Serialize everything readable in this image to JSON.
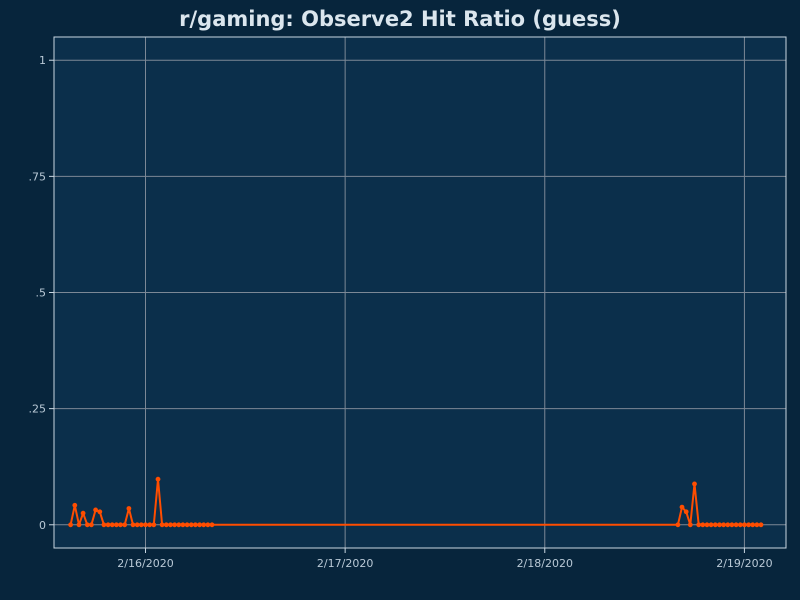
{
  "colors": {
    "background": "#07253c",
    "plot_background": "#0b2f4b",
    "plot_border": "#c9d7e2",
    "grid": "#7c8896",
    "series": "#ff4d00",
    "title": "#dbe6ee",
    "tick_label": "#b9c9d6"
  },
  "chart_data": {
    "type": "line",
    "title": "r/gaming: Observe2 Hit Ratio (guess)",
    "xlabel": "",
    "ylabel": "",
    "grid": true,
    "legend": "none",
    "x_axis": {
      "type": "datetime",
      "range": [
        "2020-02-15T13:00",
        "2020-02-19T05:00"
      ],
      "ticks": [
        "2020-02-16T00:00",
        "2020-02-17T00:00",
        "2020-02-18T00:00",
        "2020-02-19T00:00"
      ],
      "tick_labels": [
        "2/16/2020",
        "2/17/2020",
        "2/18/2020",
        "2/19/2020"
      ]
    },
    "y_axis": {
      "range": [
        -0.05,
        1.05
      ],
      "ticks": [
        0,
        0.25,
        0.5,
        0.75,
        1
      ],
      "tick_labels": [
        "0",
        ".25",
        ".5",
        ".75",
        "1"
      ]
    },
    "series": [
      {
        "x": [
          "2020-02-15T15:00",
          "2020-02-15T15:30",
          "2020-02-15T16:00",
          "2020-02-15T16:30",
          "2020-02-15T17:00",
          "2020-02-15T17:30",
          "2020-02-15T18:00",
          "2020-02-15T18:30",
          "2020-02-15T19:00",
          "2020-02-15T19:30",
          "2020-02-15T20:00",
          "2020-02-15T20:30",
          "2020-02-15T21:00",
          "2020-02-15T21:30",
          "2020-02-15T22:00",
          "2020-02-15T22:30",
          "2020-02-15T23:00",
          "2020-02-15T23:30",
          "2020-02-16T00:00",
          "2020-02-16T00:30",
          "2020-02-16T01:00",
          "2020-02-16T01:30",
          "2020-02-16T02:00",
          "2020-02-16T02:30",
          "2020-02-16T03:00",
          "2020-02-16T03:30",
          "2020-02-16T04:00",
          "2020-02-16T04:30",
          "2020-02-16T05:00",
          "2020-02-16T05:30",
          "2020-02-16T06:00",
          "2020-02-16T06:30",
          "2020-02-16T07:00",
          "2020-02-16T07:30",
          "2020-02-16T08:00",
          "2020-02-18T16:00",
          "2020-02-18T16:30",
          "2020-02-18T17:00",
          "2020-02-18T17:30",
          "2020-02-18T18:00",
          "2020-02-18T18:30",
          "2020-02-18T19:00",
          "2020-02-18T19:30",
          "2020-02-18T20:00",
          "2020-02-18T20:30",
          "2020-02-18T21:00",
          "2020-02-18T21:30",
          "2020-02-18T22:00",
          "2020-02-18T22:30",
          "2020-02-18T23:00",
          "2020-02-18T23:30",
          "2020-02-19T00:00",
          "2020-02-19T00:30",
          "2020-02-19T01:00",
          "2020-02-19T01:30",
          "2020-02-19T02:00"
        ],
        "y": [
          0,
          0.042,
          0,
          0.025,
          0,
          0,
          0.032,
          0.028,
          0,
          0,
          0,
          0,
          0,
          0,
          0.035,
          0,
          0,
          0,
          0,
          0,
          0,
          0.098,
          0,
          0,
          0,
          0,
          0,
          0,
          0,
          0,
          0,
          0,
          0,
          0,
          0,
          0,
          0.038,
          0.028,
          0,
          0.088,
          0,
          0,
          0,
          0,
          0,
          0,
          0,
          0,
          0,
          0,
          0,
          0,
          0,
          0,
          0,
          0
        ]
      }
    ]
  }
}
